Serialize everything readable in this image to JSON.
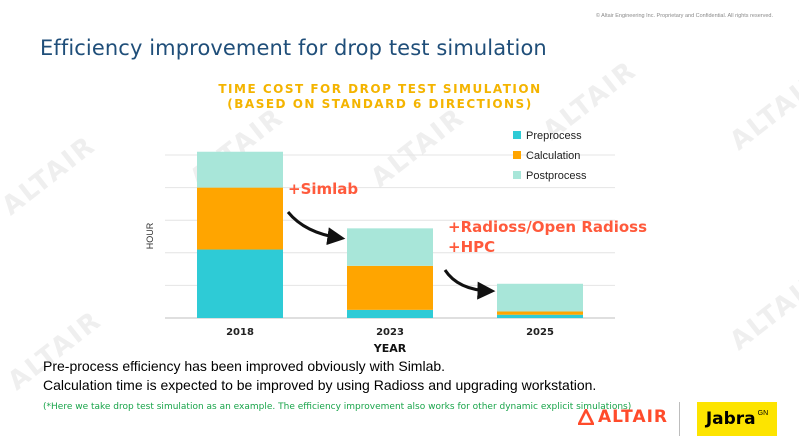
{
  "header": {
    "copyright": "© Altair Engineering Inc. Proprietary and Confidential. All rights reserved.",
    "title": "Efficiency improvement for drop test simulation"
  },
  "watermark_text": "ALTAIR",
  "chart_data": {
    "type": "bar",
    "stacked": true,
    "title": "TIME COST FOR DROP TEST SIMULATION",
    "subtitle": "(BASED ON STANDARD 6 DIRECTIONS)",
    "xlabel": "YEAR",
    "ylabel": "HOUR",
    "ylim": [
      0,
      100
    ],
    "y_ticks_shown": false,
    "categories": [
      "2018",
      "2023",
      "2025"
    ],
    "series": [
      {
        "name": "Preprocess",
        "color": "#2ecbd6",
        "values": [
          42,
          5,
          2
        ]
      },
      {
        "name": "Calculation",
        "color": "#ffa500",
        "values": [
          38,
          27,
          2
        ]
      },
      {
        "name": "Postprocess",
        "color": "#a8e6d9",
        "values": [
          22,
          23,
          17
        ]
      }
    ],
    "legend_position": "top-right",
    "annotations": [
      {
        "text": "+Simlab",
        "color": "#ff5a3c"
      },
      {
        "text": "+Radioss/Open Radioss",
        "color": "#ff5a3c"
      },
      {
        "text": "+HPC",
        "color": "#ff5a3c"
      }
    ]
  },
  "body_text": {
    "line1": "Pre-process efficiency has been improved obviously with Simlab.",
    "line2": "Calculation time is expected to be improved by using Radioss and upgrading workstation.",
    "note": "(*Here we take drop test simulation as an example. The efficiency improvement also works for other dynamic explicit simulations)"
  },
  "logos": {
    "altair_text": "ALTAIR",
    "altair_color": "#ff4b2b",
    "jabra_text": "Jabra",
    "jabra_sup": "GN",
    "jabra_color": "#fde400"
  }
}
